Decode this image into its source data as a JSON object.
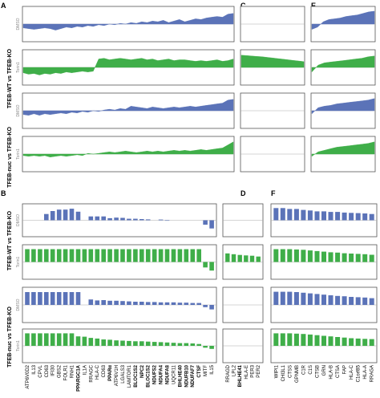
{
  "panel_labels": [
    "A",
    "B",
    "C",
    "D",
    "E",
    "F"
  ],
  "row_group_labels": {
    "top": "TFEB-WT vs TFEB-KO",
    "bottom": "TFEB-nuc vs TFEB-KO"
  },
  "condition_labels": [
    "DMSO",
    "Torin1",
    "DMSO",
    "Torin1"
  ],
  "colors": {
    "blue": "#5b73b8",
    "green": "#3fae49",
    "axis": "#555555",
    "zero": "#aaaaaa"
  },
  "chart_data": [
    {
      "type": "area",
      "panel": "A",
      "description_values": "profile sample points left to right, relative units (-1..1)",
      "series": [
        {
          "values": [
            -0.25,
            -0.3,
            -0.35,
            -0.3,
            -0.25,
            -0.3,
            -0.4,
            -0.3,
            -0.2,
            -0.25,
            -0.15,
            -0.2,
            -0.1,
            -0.15,
            -0.05,
            -0.1,
            0,
            -0.05,
            0.05,
            0,
            0.1,
            0.05,
            0.15,
            0.1,
            0.2,
            0.15,
            0.25,
            0.1,
            0.2,
            0.3,
            0.15,
            0.25,
            0.35,
            0.3,
            0.4,
            0.45,
            0.5,
            0.45,
            0.65,
            0.7
          ]
        },
        {
          "values": [
            -0.35,
            -0.45,
            -0.4,
            -0.5,
            -0.4,
            -0.45,
            -0.35,
            -0.4,
            -0.3,
            -0.35,
            -0.3,
            -0.25,
            -0.3,
            -0.25,
            0.55,
            0.6,
            0.5,
            0.55,
            0.6,
            0.55,
            0.5,
            0.55,
            0.6,
            0.5,
            0.55,
            0.45,
            0.5,
            0.55,
            0.45,
            0.5,
            0.5,
            0.45,
            0.4,
            0.45,
            0.4,
            0.45,
            0.5,
            0.4,
            0.45,
            0.55
          ]
        },
        {
          "values": [
            -0.25,
            -0.3,
            -0.2,
            -0.3,
            -0.2,
            -0.25,
            -0.2,
            -0.15,
            -0.2,
            -0.1,
            -0.15,
            -0.05,
            -0.1,
            0,
            -0.05,
            0.05,
            0.1,
            0.05,
            0.15,
            0.1,
            0.3,
            0.25,
            0.2,
            0.15,
            0.25,
            0.2,
            0.15,
            0.2,
            0.25,
            0.2,
            0.25,
            0.3,
            0.25,
            0.3,
            0.35,
            0.4,
            0.45,
            0.5,
            0.7,
            0.75
          ]
        },
        {
          "values": [
            -0.1,
            -0.15,
            -0.1,
            -0.15,
            -0.1,
            -0.2,
            -0.15,
            -0.1,
            -0.15,
            -0.1,
            -0.05,
            -0.1,
            0.05,
            0,
            0.05,
            0.1,
            0.15,
            0.1,
            0.15,
            0.2,
            0.15,
            0.1,
            0.15,
            0.2,
            0.15,
            0.2,
            0.15,
            0.2,
            0.25,
            0.2,
            0.25,
            0.2,
            0.25,
            0.3,
            0.25,
            0.3,
            0.35,
            0.4,
            0.6,
            0.8
          ]
        }
      ]
    },
    {
      "type": "area",
      "panel": "C",
      "series": [
        {
          "values": []
        },
        {
          "values": [
            0.8,
            0.78,
            0.75,
            0.72,
            0.7,
            0.66,
            0.62,
            0.58,
            0.54,
            0.5,
            0.46,
            0.42,
            0.38
          ]
        },
        {
          "values": []
        },
        {
          "values": []
        }
      ]
    },
    {
      "type": "area",
      "panel": "E",
      "series": [
        {
          "values": [
            -0.35,
            -0.2,
            0.15,
            0.3,
            0.35,
            0.4,
            0.5,
            0.55,
            0.6,
            0.7,
            0.8,
            0.85
          ]
        },
        {
          "values": [
            -0.3,
            0.15,
            0.3,
            0.35,
            0.4,
            0.45,
            0.5,
            0.55,
            0.6,
            0.7,
            0.75
          ]
        },
        {
          "values": [
            -0.2,
            0.2,
            0.3,
            0.35,
            0.45,
            0.5,
            0.55,
            0.6,
            0.65,
            0.7,
            0.8
          ]
        },
        {
          "values": [
            -0.15,
            0.15,
            0.25,
            0.35,
            0.45,
            0.5,
            0.55,
            0.6,
            0.65,
            0.7,
            0.8
          ]
        }
      ]
    },
    {
      "type": "bar",
      "panel": "B",
      "categories": [
        "ATP6V0D2",
        "IL13",
        "CPVL",
        "CD63",
        "IFI30",
        "GBS2",
        "FOLR1",
        "RNH1",
        "PPARGC1A",
        "IL1A",
        "RRAGC",
        "HLA-C",
        "CD63",
        "PPARα",
        "ATP6V1H",
        "LGALS3",
        "LAMTOR1",
        "BLOC1S2",
        "NPC2",
        "BLOC1S2",
        "NDUFS2",
        "NDUFA4",
        "NDUFA8",
        "UQCR11",
        "BHLHE40",
        "NDUFB10",
        "NDUFAF7",
        "CTSF",
        "MITF",
        "IL15"
      ],
      "bold": [
        false,
        false,
        false,
        false,
        false,
        false,
        false,
        false,
        true,
        false,
        false,
        false,
        false,
        true,
        false,
        false,
        false,
        true,
        true,
        true,
        true,
        true,
        true,
        false,
        true,
        true,
        true,
        true,
        false,
        false
      ],
      "ylim": [
        -1,
        1
      ],
      "series": [
        {
          "values": [
            0,
            0,
            0,
            0.42,
            0.62,
            0.72,
            0.72,
            0.78,
            0.58,
            0,
            0.26,
            0.26,
            0.26,
            0.14,
            0.18,
            0.16,
            0.1,
            0.1,
            0.08,
            0.06,
            0,
            0.05,
            -0.03,
            0,
            0,
            0,
            0,
            0,
            -0.3,
            -0.55
          ]
        },
        {
          "values": [
            0.82,
            0.82,
            0.82,
            0.82,
            0.82,
            0.82,
            0.82,
            0.82,
            0.82,
            0.82,
            0.82,
            0.82,
            0.82,
            0.82,
            0.82,
            0.82,
            0.82,
            0.82,
            0.82,
            0.82,
            0.82,
            0.82,
            0.82,
            0.82,
            0.82,
            0.82,
            0.82,
            0.82,
            -0.35,
            -0.55
          ]
        },
        {
          "values": [
            0.8,
            0.8,
            0.8,
            0.8,
            0.8,
            0.8,
            0.8,
            0.8,
            0.8,
            0,
            0.34,
            0.28,
            0.3,
            0.26,
            0.26,
            0.24,
            0.22,
            0.2,
            0.2,
            0.18,
            0.18,
            0.16,
            0.16,
            0.16,
            0.14,
            0.14,
            0.12,
            0.12,
            -0.14,
            -0.28
          ]
        },
        {
          "values": [
            0.82,
            0.82,
            0.82,
            0.82,
            0.82,
            0.82,
            0.82,
            0.82,
            0.62,
            0.6,
            0.52,
            0.48,
            0.42,
            0.4,
            0.36,
            0.34,
            0.32,
            0.3,
            0.3,
            0.28,
            0.26,
            0.24,
            0.22,
            0.2,
            0.18,
            0.18,
            0.16,
            0.12,
            -0.12,
            -0.2
          ]
        }
      ]
    },
    {
      "type": "bar",
      "panel": "D",
      "categories": [
        "RRAGD",
        "LPL2",
        "BHLHE41",
        "HLA-E",
        "PER3",
        "PER2"
      ],
      "bold": [
        false,
        false,
        true,
        false,
        false,
        false
      ],
      "ylim": [
        -1,
        1
      ],
      "series": [
        {
          "values": [
            0,
            0,
            0,
            0,
            0,
            0
          ]
        },
        {
          "values": [
            0.55,
            0.5,
            0.45,
            0.42,
            0.4,
            0.35
          ]
        },
        {
          "values": [
            0,
            0,
            0,
            0,
            0,
            0
          ]
        },
        {
          "values": [
            0,
            0,
            0,
            0,
            0,
            0
          ]
        }
      ]
    },
    {
      "type": "bar",
      "panel": "F",
      "categories": [
        "WIPI1",
        "CHI3L1",
        "CTSS",
        "GPNMB",
        "C1R",
        "C1S",
        "CTSB",
        "GRN",
        "HLA-B",
        "CTSA",
        "FAP",
        "HLA-C",
        "C1orf85",
        "HLA-A",
        "RRAGA"
      ],
      "bold": [
        false,
        false,
        false,
        false,
        false,
        false,
        false,
        false,
        false,
        false,
        false,
        false,
        false,
        false,
        false
      ],
      "ylim": [
        -1,
        1
      ],
      "series": [
        {
          "values": [
            0.82,
            0.82,
            0.76,
            0.76,
            0.7,
            0.66,
            0.6,
            0.6,
            0.56,
            0.56,
            0.52,
            0.5,
            0.48,
            0.46,
            0.42
          ]
        },
        {
          "values": [
            0.82,
            0.82,
            0.82,
            0.8,
            0.78,
            0.74,
            0.7,
            0.66,
            0.62,
            0.6,
            0.56,
            0.54,
            0.52,
            0.5,
            0.46
          ]
        },
        {
          "values": [
            0.82,
            0.82,
            0.82,
            0.8,
            0.76,
            0.72,
            0.68,
            0.64,
            0.6,
            0.56,
            0.54,
            0.5,
            0.48,
            0.46,
            0.42
          ]
        },
        {
          "values": [
            0.82,
            0.82,
            0.82,
            0.8,
            0.78,
            0.74,
            0.7,
            0.66,
            0.62,
            0.58,
            0.54,
            0.5,
            0.48,
            0.46,
            0.44
          ]
        }
      ]
    }
  ]
}
